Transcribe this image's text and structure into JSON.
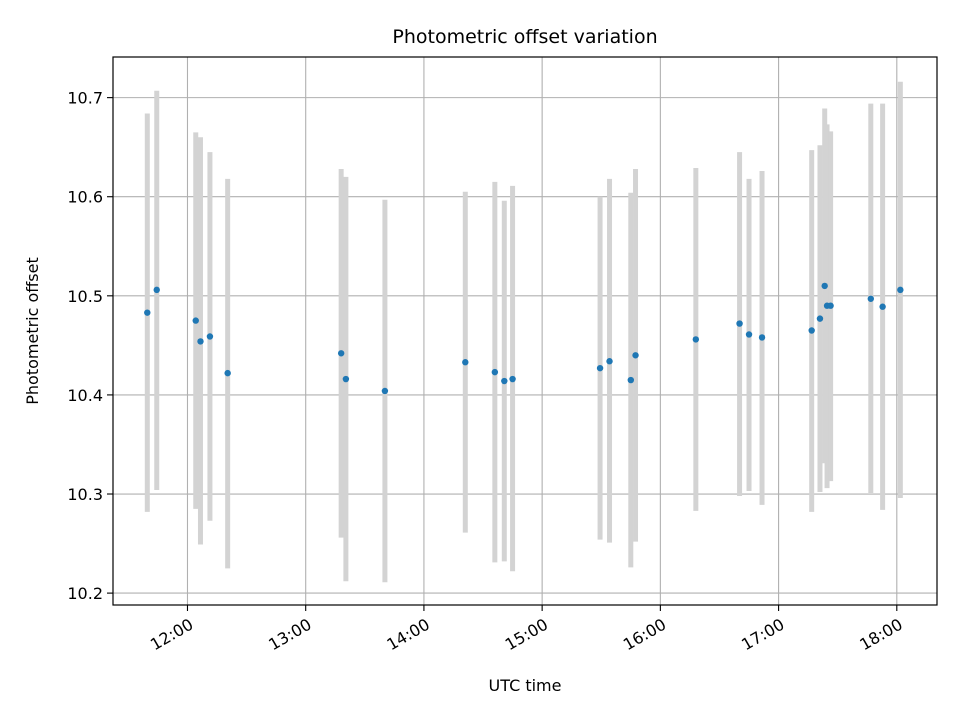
{
  "chart_data": {
    "type": "scatter",
    "title": "Photometric offset variation",
    "xlabel": "UTC time",
    "ylabel": "Photometric offset",
    "x_tick_labels": [
      "12:00",
      "13:00",
      "14:00",
      "15:00",
      "16:00",
      "17:00",
      "18:00"
    ],
    "x_ticks": [
      12.0,
      13.0,
      14.0,
      15.0,
      16.0,
      17.0,
      18.0
    ],
    "xlim": [
      11.37,
      18.34
    ],
    "y_tick_labels": [
      "10.2",
      "10.3",
      "10.4",
      "10.5",
      "10.6",
      "10.7"
    ],
    "y_ticks": [
      10.2,
      10.3,
      10.4,
      10.5,
      10.6,
      10.7
    ],
    "ylim": [
      10.188,
      10.741
    ],
    "grid": true,
    "point_color": "#1f77b4",
    "errorbar_color": "#d3d3d3",
    "points": [
      {
        "x": 11.66,
        "y": 10.483,
        "ylo": 10.282,
        "yhi": 10.684
      },
      {
        "x": 11.74,
        "y": 10.506,
        "ylo": 10.304,
        "yhi": 10.707
      },
      {
        "x": 12.07,
        "y": 10.475,
        "ylo": 10.285,
        "yhi": 10.665
      },
      {
        "x": 12.11,
        "y": 10.454,
        "ylo": 10.249,
        "yhi": 10.66
      },
      {
        "x": 12.19,
        "y": 10.459,
        "ylo": 10.273,
        "yhi": 10.645
      },
      {
        "x": 12.34,
        "y": 10.422,
        "ylo": 10.225,
        "yhi": 10.618
      },
      {
        "x": 13.3,
        "y": 10.442,
        "ylo": 10.256,
        "yhi": 10.628
      },
      {
        "x": 13.34,
        "y": 10.416,
        "ylo": 10.212,
        "yhi": 10.62
      },
      {
        "x": 13.67,
        "y": 10.404,
        "ylo": 10.211,
        "yhi": 10.597
      },
      {
        "x": 14.35,
        "y": 10.433,
        "ylo": 10.261,
        "yhi": 10.605
      },
      {
        "x": 14.6,
        "y": 10.423,
        "ylo": 10.231,
        "yhi": 10.615
      },
      {
        "x": 14.68,
        "y": 10.414,
        "ylo": 10.232,
        "yhi": 10.596
      },
      {
        "x": 14.75,
        "y": 10.416,
        "ylo": 10.222,
        "yhi": 10.611
      },
      {
        "x": 15.49,
        "y": 10.427,
        "ylo": 10.254,
        "yhi": 10.6
      },
      {
        "x": 15.57,
        "y": 10.434,
        "ylo": 10.251,
        "yhi": 10.618
      },
      {
        "x": 15.75,
        "y": 10.415,
        "ylo": 10.226,
        "yhi": 10.604
      },
      {
        "x": 15.79,
        "y": 10.44,
        "ylo": 10.252,
        "yhi": 10.628
      },
      {
        "x": 16.3,
        "y": 10.456,
        "ylo": 10.283,
        "yhi": 10.629
      },
      {
        "x": 16.67,
        "y": 10.472,
        "ylo": 10.298,
        "yhi": 10.645
      },
      {
        "x": 16.75,
        "y": 10.461,
        "ylo": 10.303,
        "yhi": 10.618
      },
      {
        "x": 16.86,
        "y": 10.458,
        "ylo": 10.289,
        "yhi": 10.626
      },
      {
        "x": 17.28,
        "y": 10.465,
        "ylo": 10.282,
        "yhi": 10.647
      },
      {
        "x": 17.35,
        "y": 10.477,
        "ylo": 10.302,
        "yhi": 10.652
      },
      {
        "x": 17.39,
        "y": 10.51,
        "ylo": 10.331,
        "yhi": 10.689
      },
      {
        "x": 17.41,
        "y": 10.49,
        "ylo": 10.306,
        "yhi": 10.673
      },
      {
        "x": 17.44,
        "y": 10.49,
        "ylo": 10.313,
        "yhi": 10.666
      },
      {
        "x": 17.78,
        "y": 10.497,
        "ylo": 10.301,
        "yhi": 10.694
      },
      {
        "x": 17.88,
        "y": 10.489,
        "ylo": 10.284,
        "yhi": 10.694
      },
      {
        "x": 18.03,
        "y": 10.506,
        "ylo": 10.296,
        "yhi": 10.716
      }
    ]
  }
}
